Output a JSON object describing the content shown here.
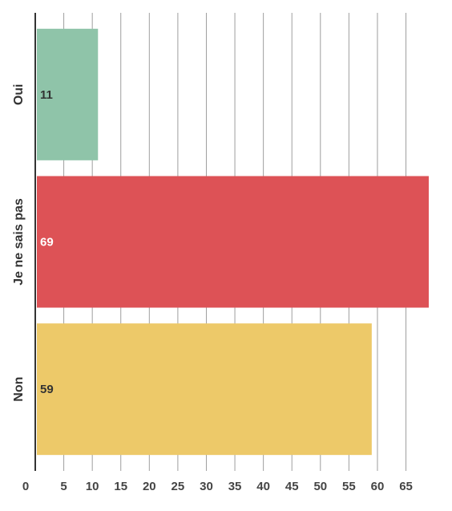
{
  "chart_data": {
    "type": "bar",
    "orientation": "horizontal",
    "categories": [
      "Oui",
      "Je ne sais pas",
      "Non"
    ],
    "values": [
      11,
      69,
      59
    ],
    "colors": [
      "#8fc4a9",
      "#dd5256",
      "#edc969"
    ],
    "label_colors": [
      "#333333",
      "#ffffff",
      "#333333"
    ],
    "xticks": [
      0,
      5,
      10,
      15,
      20,
      25,
      30,
      35,
      40,
      45,
      50,
      55,
      60,
      65
    ],
    "xlim": [
      0,
      69
    ],
    "grid": true,
    "title": "",
    "xlabel": "",
    "ylabel": ""
  }
}
